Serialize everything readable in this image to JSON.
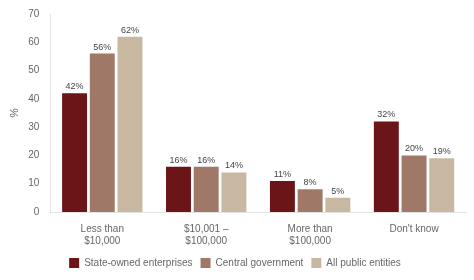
{
  "chart_data": {
    "type": "bar",
    "categories": [
      "Less than\n$10,000",
      "$10,001 –\n$100,000",
      "More than\n$100,000",
      "Don't know"
    ],
    "series": [
      {
        "name": "State-owned enterprises",
        "color": "#6B1518",
        "values": [
          42,
          16,
          11,
          32
        ],
        "value_labels": [
          "42%",
          "16%",
          "11%",
          "32%"
        ]
      },
      {
        "name": "Central government",
        "color": "#A07868",
        "values": [
          56,
          16,
          8,
          20
        ],
        "value_labels": [
          "56%",
          "16%",
          "8%",
          "20%"
        ]
      },
      {
        "name": "All public entities",
        "color": "#C8B8A2",
        "values": [
          62,
          14,
          5,
          19
        ],
        "value_labels": [
          "62%",
          "14%",
          "5%",
          "19%"
        ]
      }
    ],
    "ylabel": "%",
    "ylim": [
      0,
      70
    ],
    "yticks": [
      0,
      10,
      20,
      30,
      40,
      50,
      60,
      70
    ],
    "grid": false,
    "legend": "bottom",
    "data_labels": true
  }
}
